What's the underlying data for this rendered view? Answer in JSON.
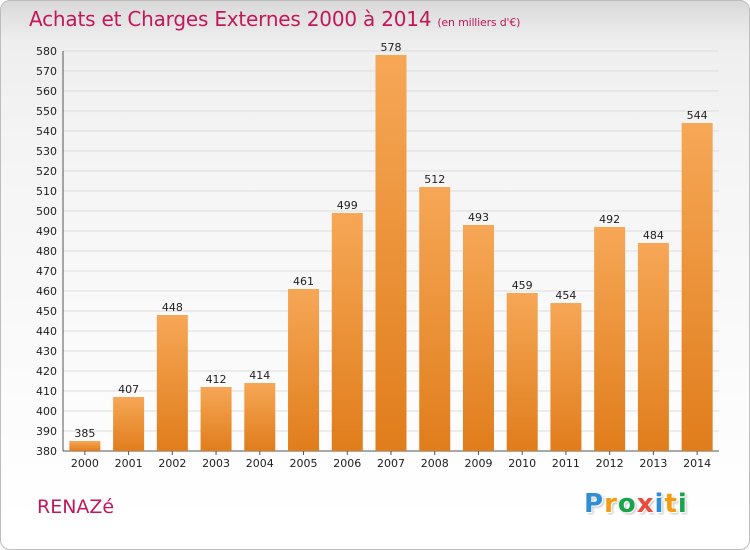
{
  "header": {
    "title": "Achats et Charges Externes 2000 à 2014",
    "unit": "(en milliers d'€)"
  },
  "footer": {
    "place": "RENAZé",
    "logo_letters": [
      "P",
      "r",
      "o",
      "x",
      "i",
      "t",
      "i"
    ],
    "logo_colors": [
      "#2f8fd6",
      "#f39c12",
      "#1aa34a",
      "#e74c3c",
      "#2f8fd6",
      "#f39c12",
      "#1aa34a"
    ]
  },
  "colors": {
    "bar_top": "#f6a756",
    "bar_bottom": "#e07d1c",
    "title": "#c2185b",
    "grid": "#dcdcdc"
  },
  "chart_data": {
    "type": "bar",
    "title": "Achats et Charges Externes 2000 à 2014",
    "subtitle": "(en milliers d'€)",
    "xlabel": "",
    "ylabel": "",
    "categories": [
      "2000",
      "2001",
      "2002",
      "2003",
      "2004",
      "2005",
      "2006",
      "2007",
      "2008",
      "2009",
      "2010",
      "2011",
      "2012",
      "2013",
      "2014"
    ],
    "values": [
      385,
      407,
      448,
      412,
      414,
      461,
      499,
      578,
      512,
      493,
      459,
      454,
      492,
      484,
      544
    ],
    "ylim": [
      380,
      580
    ],
    "yticks": [
      380,
      390,
      400,
      410,
      420,
      430,
      440,
      450,
      460,
      470,
      480,
      490,
      500,
      510,
      520,
      530,
      540,
      550,
      560,
      570,
      580
    ],
    "grid": true,
    "data_labels": true
  }
}
